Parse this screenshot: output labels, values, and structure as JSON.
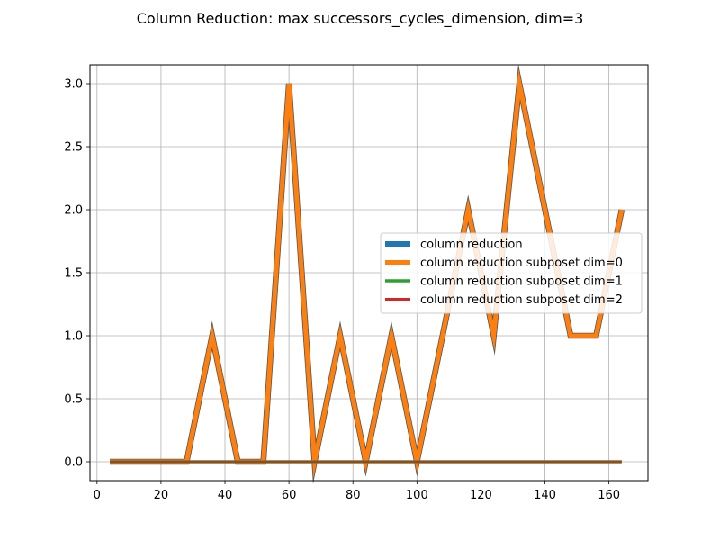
{
  "chart_data": {
    "type": "line",
    "title": "Column Reduction: max successors_cycles_dimension, dim=3",
    "xlabel": "",
    "ylabel": "",
    "xlim": [
      -2.2,
      172.2
    ],
    "ylim": [
      -0.15,
      3.15
    ],
    "xticks": [
      0,
      20,
      40,
      60,
      80,
      100,
      120,
      140,
      160
    ],
    "yticks": [
      0.0,
      0.5,
      1.0,
      1.5,
      2.0,
      2.5,
      3.0
    ],
    "xtick_labels": [
      "0",
      "20",
      "40",
      "60",
      "80",
      "100",
      "120",
      "140",
      "160"
    ],
    "ytick_labels": [
      "0.0",
      "0.5",
      "1.0",
      "1.5",
      "2.0",
      "2.5",
      "3.0"
    ],
    "grid": true,
    "legend_position": "center-right",
    "x": [
      4,
      12,
      20,
      28,
      36,
      44,
      52,
      60,
      68,
      76,
      84,
      92,
      100,
      108,
      116,
      124,
      132,
      140,
      148,
      156,
      164
    ],
    "series": [
      {
        "name": "column reduction",
        "color": "#1f77b4",
        "values": [
          0,
          0,
          0,
          0,
          1,
          0,
          0,
          3,
          0,
          1,
          0,
          1,
          0,
          1,
          2,
          1,
          3,
          2,
          1,
          1,
          2
        ]
      },
      {
        "name": "column reduction subposet dim=0",
        "color": "#ff7f0e",
        "values": [
          0,
          0,
          0,
          0,
          1,
          0,
          0,
          3,
          0,
          1,
          0,
          1,
          0,
          1,
          2,
          1,
          3,
          2,
          1,
          1,
          2
        ]
      },
      {
        "name": "column reduction subposet dim=1",
        "color": "#2ca02c",
        "values": [
          0,
          0,
          0,
          0,
          0,
          0,
          0,
          0,
          0,
          0,
          0,
          0,
          0,
          0,
          0,
          0,
          0,
          0,
          0,
          0,
          0
        ]
      },
      {
        "name": "column reduction subposet dim=2",
        "color": "#d62728",
        "values": [
          0,
          0,
          0,
          0,
          0,
          0,
          0,
          0,
          0,
          0,
          0,
          0,
          0,
          0,
          0,
          0,
          0,
          0,
          0,
          0,
          0
        ]
      }
    ]
  }
}
